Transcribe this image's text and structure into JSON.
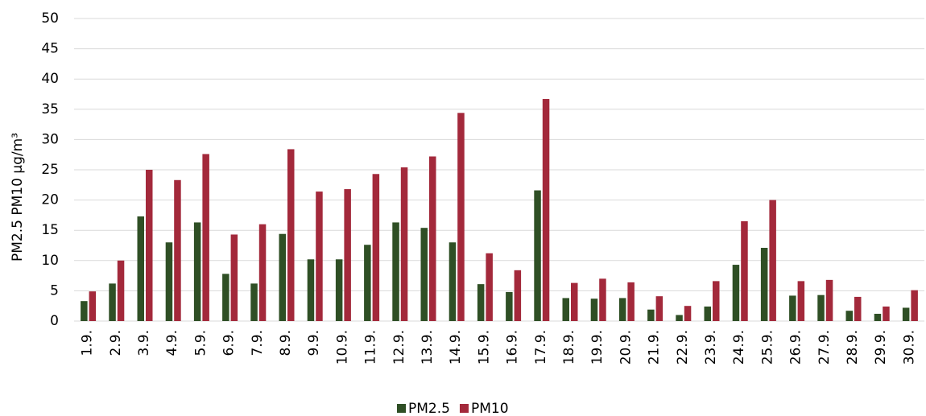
{
  "chart_data": {
    "type": "bar",
    "y_label": "PM2.5  PM10 µg/m³",
    "categories": [
      "1.9.",
      "2.9.",
      "3.9.",
      "4.9.",
      "5.9.",
      "6.9.",
      "7.9.",
      "8.9.",
      "9.9.",
      "10.9.",
      "11.9.",
      "12.9.",
      "13.9.",
      "14.9.",
      "15.9.",
      "16.9.",
      "17.9.",
      "18.9.",
      "19.9.",
      "20.9.",
      "21.9.",
      "22.9.",
      "23.9.",
      "24.9.",
      "25.9.",
      "26.9.",
      "27.9.",
      "28.9.",
      "29.9.",
      "30.9."
    ],
    "series": [
      {
        "name": "PM2.5",
        "color": "#2f4f25",
        "values": [
          3.3,
          6.2,
          17.3,
          13,
          16.3,
          7.8,
          6.2,
          14.4,
          10.2,
          10.2,
          12.6,
          16.3,
          15.4,
          13,
          6.1,
          4.8,
          21.6,
          3.8,
          3.7,
          3.8,
          1.9,
          1,
          2.4,
          9.3,
          12.1,
          4.2,
          4.3,
          1.7,
          1.2,
          2.2
        ]
      },
      {
        "name": "PM10",
        "color": "#a3293b",
        "values": [
          4.9,
          10,
          25,
          23.3,
          27.6,
          14.3,
          16,
          28.4,
          21.4,
          21.8,
          24.3,
          25.4,
          27.2,
          34.4,
          11.2,
          8.4,
          36.7,
          6.3,
          7,
          6.4,
          4.1,
          2.5,
          6.6,
          16.5,
          20,
          6.6,
          6.8,
          4,
          2.4,
          5.1
        ]
      }
    ],
    "ylim": [
      0,
      50
    ],
    "yticks": [
      0,
      5,
      10,
      15,
      20,
      25,
      30,
      35,
      40,
      45,
      50
    ],
    "grid": true,
    "legend": "bottom"
  }
}
